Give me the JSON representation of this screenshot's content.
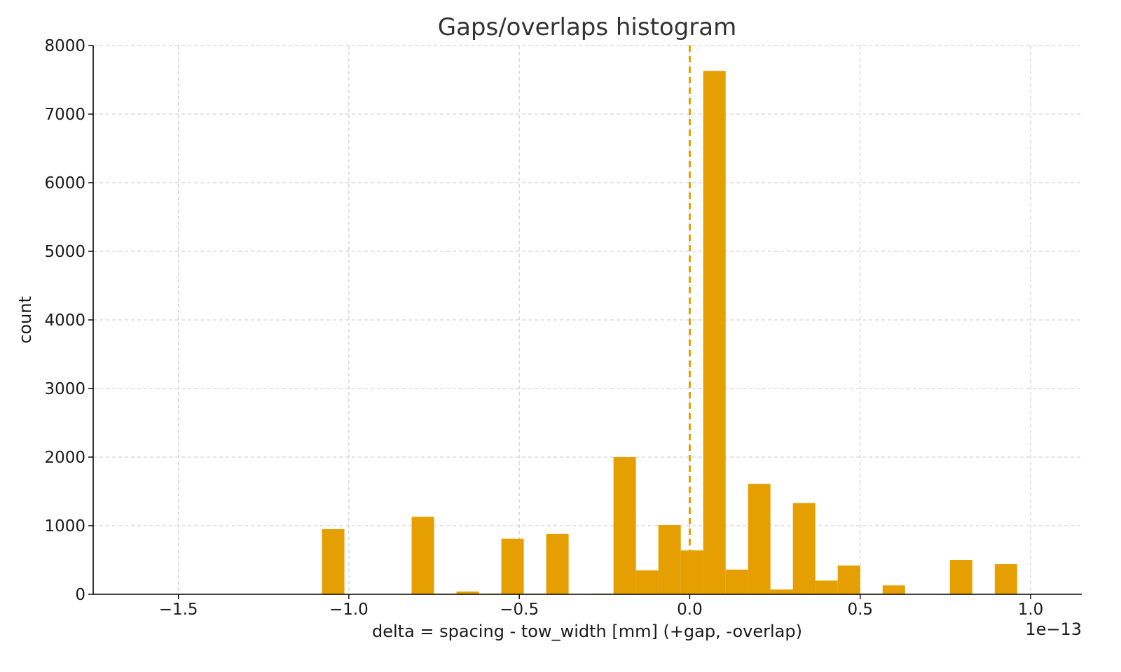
{
  "chart_data": {
    "type": "bar",
    "title": "Gaps/overlaps histogram",
    "xlabel": "delta = spacing - tow_width [mm] (+gap, -overlap)",
    "ylabel": "count",
    "x_offset_label": "1e−13",
    "xlim": [
      -1.75,
      1.15
    ],
    "ylim": [
      0,
      8000
    ],
    "x_ticks": [
      -1.5,
      -1.0,
      -0.5,
      0.0,
      0.5,
      1.0
    ],
    "x_tick_labels": [
      "−1.5",
      "−1.0",
      "−0.5",
      "0.0",
      "0.5",
      "1.0"
    ],
    "y_ticks": [
      0,
      1000,
      2000,
      3000,
      4000,
      5000,
      6000,
      7000,
      8000
    ],
    "y_tick_labels": [
      "0",
      "1000",
      "2000",
      "3000",
      "4000",
      "5000",
      "6000",
      "7000",
      "8000"
    ],
    "grid": true,
    "bar_color": "#E69F00",
    "bin_edges": [
      -1.0789,
      -1.0131,
      -0.9474,
      -0.8816,
      -0.8158,
      -0.75,
      -0.6842,
      -0.6184,
      -0.5526,
      -0.4868,
      -0.4211,
      -0.3553,
      -0.2895,
      -0.2237,
      -0.1579,
      -0.0921,
      -0.0263,
      0.0395,
      0.1053,
      0.1711,
      0.2368,
      0.3026,
      0.3684,
      0.4342,
      0.5,
      0.5658,
      0.6316,
      0.6974,
      0.7632,
      0.8289,
      0.8947,
      0.9605,
      1.0263
    ],
    "values": [
      950,
      0,
      0,
      0,
      1130,
      10,
      40,
      10,
      810,
      10,
      880,
      0,
      10,
      2000,
      350,
      1010,
      640,
      7630,
      360,
      1610,
      70,
      1330,
      200,
      420,
      10,
      130,
      0,
      0,
      500,
      0,
      440,
      0
    ],
    "reference_line": {
      "x": 0.0,
      "style": "dashed",
      "color": "#E69F00"
    }
  }
}
